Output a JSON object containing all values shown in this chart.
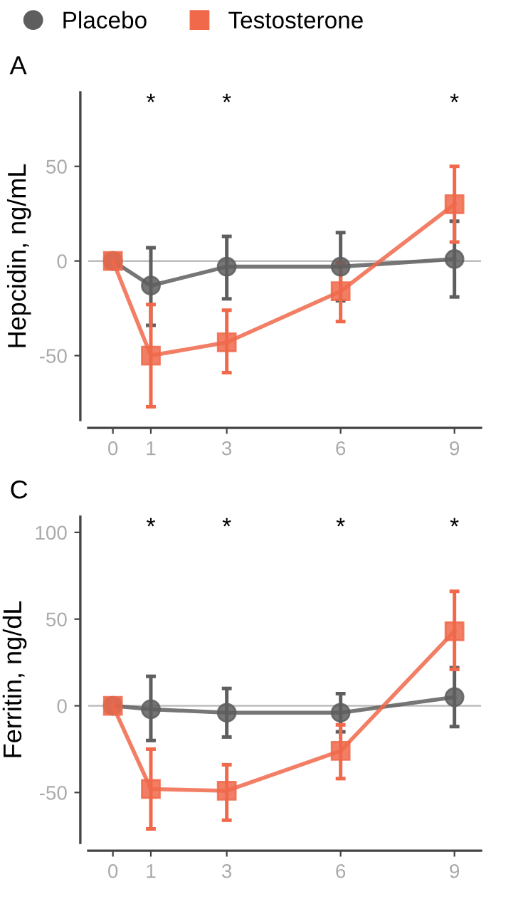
{
  "chart_data": [
    {
      "type": "line",
      "title": "A",
      "ylabel": "Hepcidin, ng/mL",
      "x": [
        0,
        1,
        3,
        6,
        9
      ],
      "xlim": [
        -0.65,
        9.7
      ],
      "xticks": [
        0,
        1,
        3,
        6,
        9
      ],
      "ylim": [
        -84,
        89
      ],
      "yticks": [
        -50,
        0,
        50
      ],
      "grid": false,
      "legend": "top left",
      "line_style": "solid",
      "series": [
        {
          "name": "Placebo",
          "color": "#5e5e5e",
          "marker": "circle",
          "values": [
            0,
            -13,
            -3,
            -3,
            1
          ],
          "errors": [
            null,
            [
              -34,
              7
            ],
            [
              -20,
              13
            ],
            [
              -21,
              15
            ],
            [
              -19,
              21
            ]
          ]
        },
        {
          "name": "Testosterone",
          "color": "#f0694a",
          "marker": "square",
          "values": [
            0,
            -50,
            -43,
            -16,
            30
          ],
          "errors": [
            null,
            [
              -77,
              -23
            ],
            [
              -59,
              -26
            ],
            [
              -32,
              -1
            ],
            [
              10,
              50
            ]
          ]
        }
      ],
      "ref_lines": [
        {
          "axis": "y",
          "value": 0,
          "color": "#bdbdbd"
        }
      ],
      "annotations": [
        "*",
        "*",
        "*"
      ]
    },
    {
      "type": "line",
      "title": "C",
      "ylabel": "Ferritin, ng/dL",
      "x": [
        0,
        1,
        3,
        6,
        9
      ],
      "xlim": [
        -0.65,
        9.7
      ],
      "xticks": [
        0,
        1,
        3,
        6,
        9
      ],
      "ylim": [
        -79,
        109
      ],
      "yticks": [
        -50,
        0,
        50,
        100
      ],
      "grid": false,
      "line_style": "solid",
      "series": [
        {
          "color": "#5e5e5e",
          "marker": "circle",
          "values": [
            0,
            -2,
            -4,
            -4,
            5
          ],
          "errors": [
            null,
            [
              -20,
              17
            ],
            [
              -18,
              10
            ],
            [
              -15,
              7
            ],
            [
              -12,
              22
            ]
          ]
        },
        {
          "color": "#f0694a",
          "marker": "square",
          "values": [
            0,
            -48,
            -49,
            -26,
            43
          ],
          "errors": [
            null,
            [
              -71,
              -25
            ],
            [
              -66,
              -34
            ],
            [
              -42,
              -11
            ],
            [
              21,
              66
            ]
          ]
        }
      ],
      "ref_lines": [
        {
          "axis": "y",
          "value": 0,
          "color": "#bdbdbd"
        }
      ],
      "annotations": [
        "*",
        "*",
        "*",
        "*"
      ]
    }
  ]
}
